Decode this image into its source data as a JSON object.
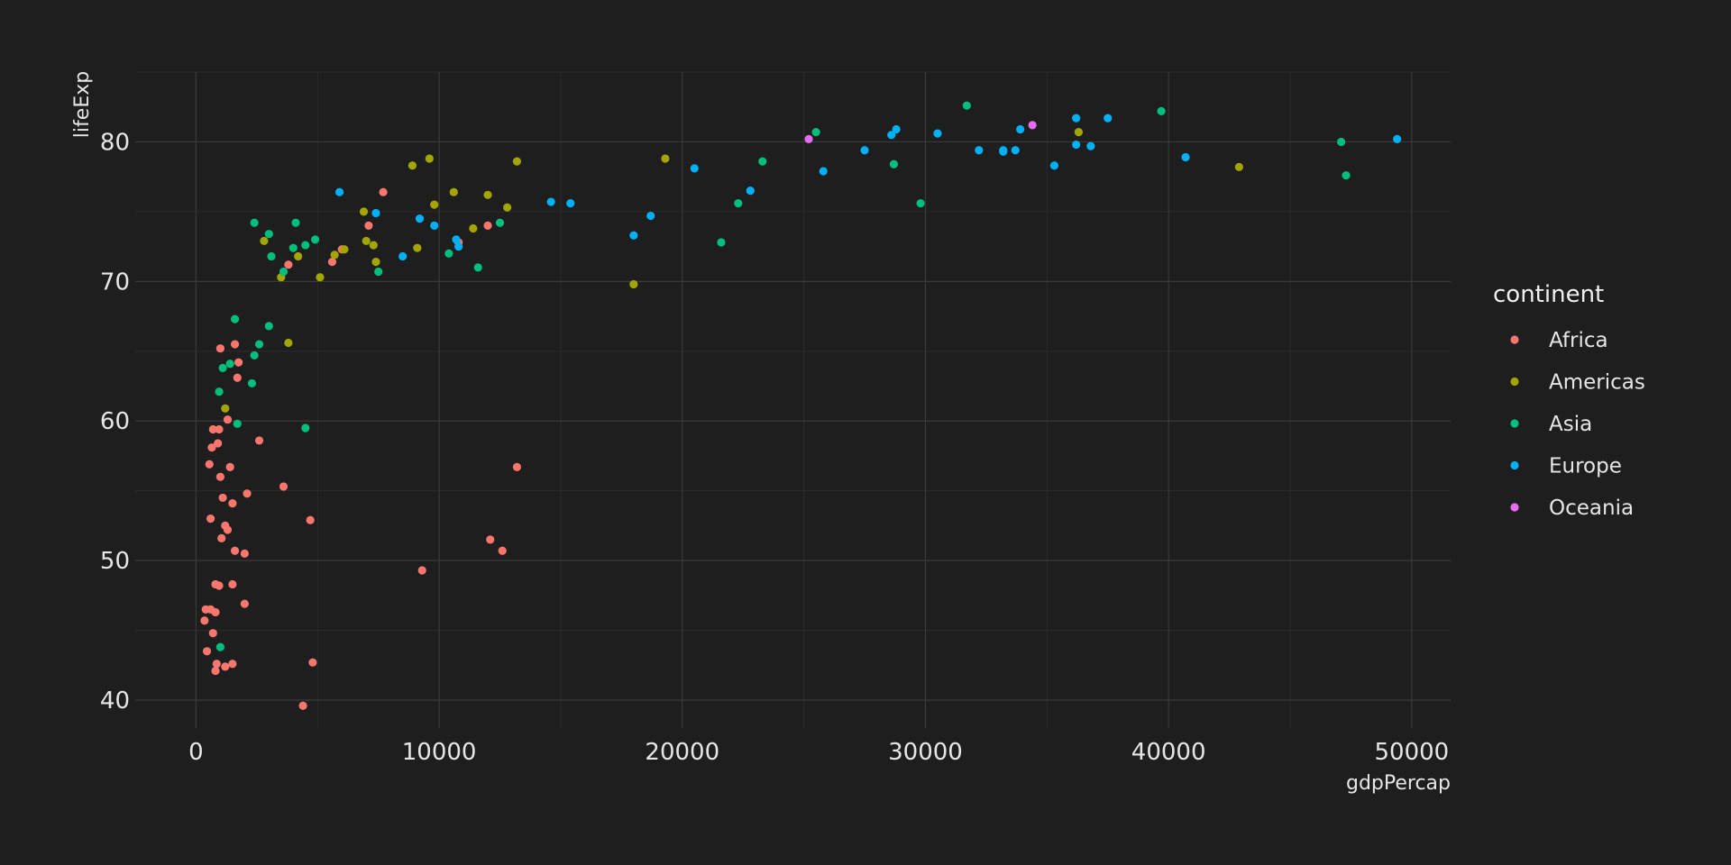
{
  "colors": {
    "background": "#1e1e1e",
    "grid_major": "#3a3a3a",
    "grid_minor": "#2c2c2c",
    "text": "#e6e6e6"
  },
  "chart_data": {
    "type": "scatter",
    "title": "",
    "xlabel": "gdpPercap",
    "ylabel": "lifeExp",
    "xlim": [
      -2500,
      51600
    ],
    "ylim": [
      38,
      85
    ],
    "xticks": [
      0,
      10000,
      20000,
      30000,
      40000,
      50000
    ],
    "yticks": [
      40,
      50,
      60,
      70,
      80
    ],
    "grid": true,
    "legend": {
      "title": "continent",
      "position": "right"
    },
    "series": [
      {
        "name": "Africa",
        "color": "#f8766d",
        "points": [
          [
            400,
            46.5
          ],
          [
            350,
            45.7
          ],
          [
            450,
            43.5
          ],
          [
            600,
            46.5
          ],
          [
            800,
            46.3
          ],
          [
            700,
            44.8
          ],
          [
            600,
            53.0
          ],
          [
            550,
            56.9
          ],
          [
            650,
            58.1
          ],
          [
            700,
            59.4
          ],
          [
            900,
            58.4
          ],
          [
            950,
            59.4
          ],
          [
            1000,
            56.0
          ],
          [
            1100,
            54.5
          ],
          [
            1050,
            51.6
          ],
          [
            1200,
            52.5
          ],
          [
            1300,
            52.2
          ],
          [
            1400,
            56.7
          ],
          [
            1500,
            54.1
          ],
          [
            1600,
            50.7
          ],
          [
            1500,
            48.3
          ],
          [
            2000,
            50.5
          ],
          [
            2100,
            54.8
          ],
          [
            2000,
            46.9
          ],
          [
            800,
            48.3
          ],
          [
            950,
            48.2
          ],
          [
            850,
            42.6
          ],
          [
            800,
            42.1
          ],
          [
            1200,
            42.4
          ],
          [
            1500,
            42.6
          ],
          [
            1000,
            65.2
          ],
          [
            1600,
            65.5
          ],
          [
            1750,
            64.2
          ],
          [
            1700,
            63.1
          ],
          [
            1300,
            60.1
          ],
          [
            2600,
            58.6
          ],
          [
            3600,
            55.3
          ],
          [
            4700,
            52.9
          ],
          [
            4400,
            39.6
          ],
          [
            4800,
            42.7
          ],
          [
            3800,
            71.2
          ],
          [
            5600,
            71.4
          ],
          [
            6000,
            72.3
          ],
          [
            7100,
            74.0
          ],
          [
            7700,
            76.4
          ],
          [
            9300,
            49.3
          ],
          [
            10800,
            72.8
          ],
          [
            12000,
            74.0
          ],
          [
            12100,
            51.5
          ],
          [
            12600,
            50.7
          ],
          [
            13200,
            56.7
          ]
        ]
      },
      {
        "name": "Americas",
        "color": "#a3a500",
        "points": [
          [
            1200,
            60.9
          ],
          [
            2800,
            72.9
          ],
          [
            3500,
            70.3
          ],
          [
            3800,
            65.6
          ],
          [
            4200,
            71.8
          ],
          [
            5100,
            70.3
          ],
          [
            5700,
            71.9
          ],
          [
            6100,
            72.3
          ],
          [
            6900,
            75.0
          ],
          [
            7000,
            72.9
          ],
          [
            7300,
            72.6
          ],
          [
            7400,
            71.4
          ],
          [
            8900,
            78.3
          ],
          [
            9100,
            72.4
          ],
          [
            9600,
            78.8
          ],
          [
            9800,
            75.5
          ],
          [
            10600,
            76.4
          ],
          [
            11400,
            73.8
          ],
          [
            12000,
            76.2
          ],
          [
            12800,
            75.3
          ],
          [
            13200,
            78.6
          ],
          [
            18000,
            69.8
          ],
          [
            19300,
            78.8
          ],
          [
            36300,
            80.7
          ],
          [
            42900,
            78.2
          ]
        ]
      },
      {
        "name": "Asia",
        "color": "#00bf7d",
        "points": [
          [
            950,
            62.1
          ],
          [
            1100,
            63.8
          ],
          [
            1400,
            64.1
          ],
          [
            1600,
            67.3
          ],
          [
            1700,
            59.8
          ],
          [
            2300,
            62.7
          ],
          [
            2400,
            64.7
          ],
          [
            2600,
            65.5
          ],
          [
            3000,
            66.8
          ],
          [
            3100,
            71.8
          ],
          [
            2400,
            74.2
          ],
          [
            3000,
            73.4
          ],
          [
            3600,
            70.7
          ],
          [
            4000,
            72.4
          ],
          [
            4100,
            74.2
          ],
          [
            4500,
            72.6
          ],
          [
            4900,
            73.0
          ],
          [
            7500,
            70.7
          ],
          [
            10400,
            72.0
          ],
          [
            11600,
            71.0
          ],
          [
            12500,
            74.2
          ],
          [
            21600,
            72.8
          ],
          [
            22300,
            75.6
          ],
          [
            23300,
            78.6
          ],
          [
            25500,
            80.7
          ],
          [
            28700,
            78.4
          ],
          [
            29800,
            75.6
          ],
          [
            31700,
            82.6
          ],
          [
            39700,
            82.2
          ],
          [
            47100,
            80.0
          ],
          [
            47300,
            77.6
          ],
          [
            4500,
            59.5
          ],
          [
            1000,
            43.8
          ]
        ]
      },
      {
        "name": "Europe",
        "color": "#00b0f6",
        "points": [
          [
            5900,
            76.4
          ],
          [
            7400,
            74.9
          ],
          [
            8500,
            71.8
          ],
          [
            9200,
            74.5
          ],
          [
            9800,
            74.0
          ],
          [
            10700,
            73.0
          ],
          [
            10800,
            72.5
          ],
          [
            14600,
            75.7
          ],
          [
            15400,
            75.6
          ],
          [
            18000,
            73.3
          ],
          [
            18700,
            74.7
          ],
          [
            20500,
            78.1
          ],
          [
            22800,
            76.5
          ],
          [
            25800,
            77.9
          ],
          [
            27500,
            79.4
          ],
          [
            28600,
            80.5
          ],
          [
            28800,
            80.9
          ],
          [
            30500,
            80.6
          ],
          [
            32200,
            79.4
          ],
          [
            33200,
            79.3
          ],
          [
            33200,
            79.4
          ],
          [
            33700,
            79.4
          ],
          [
            33900,
            80.9
          ],
          [
            35300,
            78.3
          ],
          [
            36200,
            79.8
          ],
          [
            36200,
            81.7
          ],
          [
            36800,
            79.7
          ],
          [
            37500,
            81.7
          ],
          [
            40700,
            78.9
          ],
          [
            49400,
            80.2
          ]
        ]
      },
      {
        "name": "Oceania",
        "color": "#e76bf3",
        "points": [
          [
            25200,
            80.2
          ],
          [
            34400,
            81.2
          ]
        ]
      }
    ]
  }
}
